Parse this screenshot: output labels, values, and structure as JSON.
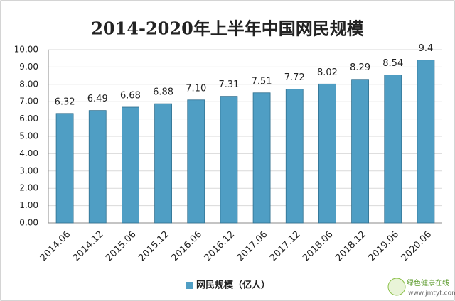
{
  "chart_data": {
    "type": "bar",
    "title": "2014-2020年上半年中国网民规模",
    "categories": [
      "2014.06",
      "2014.12",
      "2015.06",
      "2015.12",
      "2016.06",
      "2016.12",
      "2017.06",
      "2017.12",
      "2018.06",
      "2018.12",
      "2019.06",
      "2020.06"
    ],
    "series": [
      {
        "name": "网民规模（亿人）",
        "color": "#4f9ec4",
        "values": [
          6.32,
          6.49,
          6.68,
          6.88,
          7.1,
          7.31,
          7.51,
          7.72,
          8.02,
          8.29,
          8.54,
          9.4
        ],
        "value_labels": [
          "6.32",
          "6.49",
          "6.68",
          "6.88",
          "7.10",
          "7.31",
          "7.51",
          "7.72",
          "8.02",
          "8.29",
          "8.54",
          "9.4"
        ]
      }
    ],
    "ylim": [
      0,
      10
    ],
    "yticks": [
      {
        "value": 0,
        "label": "0.00"
      },
      {
        "value": 1,
        "label": "1.00"
      },
      {
        "value": 2,
        "label": "2.00"
      },
      {
        "value": 3,
        "label": "3.00"
      },
      {
        "value": 4,
        "label": "4.00"
      },
      {
        "value": 5,
        "label": "5.00"
      },
      {
        "value": 6,
        "label": "6.00"
      },
      {
        "value": 7,
        "label": "7.00"
      },
      {
        "value": 8,
        "label": "8.00"
      },
      {
        "value": 9,
        "label": "9.00"
      },
      {
        "value": 10,
        "label": "10.00"
      }
    ],
    "grid": true,
    "legend": "bottom"
  },
  "watermark": {
    "name": "绿色健康在线",
    "url": "www.jmtyt.com"
  }
}
